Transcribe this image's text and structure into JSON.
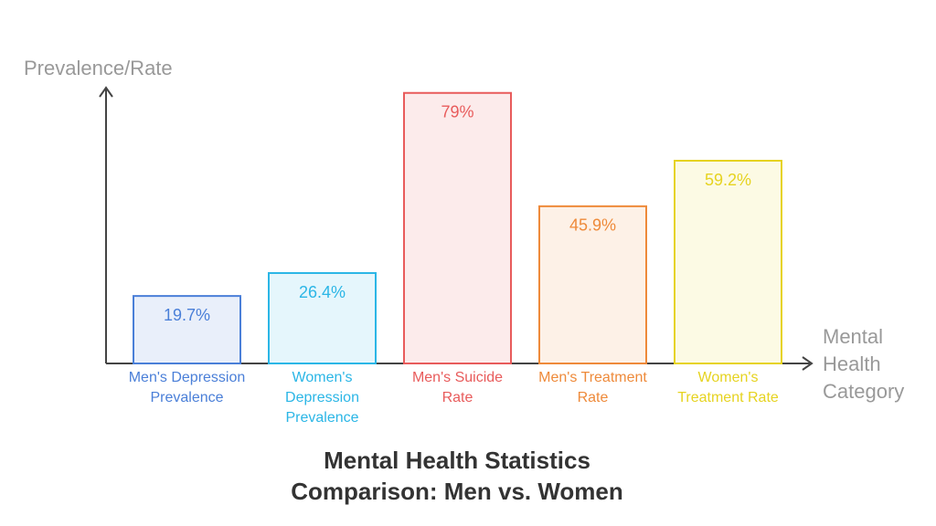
{
  "chart_data": {
    "type": "bar",
    "title": "Mental Health Statistics Comparison: Men vs. Women",
    "y_label": "Prevalence/Rate",
    "x_label": "Mental Health Category",
    "categories": [
      "Men's Depression Prevalence",
      "Women's Depression Prevalence",
      "Men's Suicide Rate",
      "Men's Treatment Rate",
      "Women's Treatment Rate"
    ],
    "values": [
      19.7,
      26.4,
      79,
      45.9,
      59.2
    ],
    "value_labels": [
      "19.7%",
      "26.4%",
      "79%",
      "45.9%",
      "59.2%"
    ],
    "colors": [
      "#4a7fd8",
      "#2bb6e6",
      "#e85b5b",
      "#ee8a3a",
      "#e6d320"
    ],
    "ylim": [
      0,
      80
    ]
  }
}
